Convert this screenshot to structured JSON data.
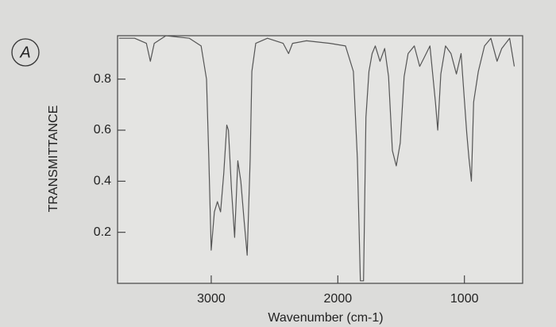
{
  "chart_data": {
    "type": "line",
    "annotation": "A",
    "xlabel": "Wavenumber (cm-1)",
    "ylabel": "TRANSMITTANCE",
    "xlim": [
      3740,
      540
    ],
    "ylim": [
      0,
      0.97
    ],
    "xticks": [
      3000,
      2000,
      1000
    ],
    "yticks": [
      0.2,
      0.4,
      0.6,
      0.8
    ],
    "series": [
      {
        "color": "#555555",
        "x": [
          3728,
          3605,
          3512,
          3481,
          3450,
          3358,
          3173,
          3080,
          3037,
          3019,
          3000,
          2975,
          2951,
          2926,
          2901,
          2877,
          2864,
          2840,
          2815,
          2790,
          2766,
          2741,
          2716,
          2692,
          2679,
          2648,
          2556,
          2432,
          2389,
          2358,
          2247,
          2062,
          1939,
          1877,
          1846,
          1822,
          1797,
          1778,
          1754,
          1729,
          1704,
          1667,
          1630,
          1599,
          1569,
          1538,
          1507,
          1476,
          1445,
          1396,
          1353,
          1322,
          1272,
          1229,
          1211,
          1186,
          1149,
          1106,
          1063,
          1026,
          982,
          964,
          945,
          927,
          890,
          841,
          791,
          742,
          705,
          643,
          606
        ],
        "values": [
          0.96,
          0.96,
          0.94,
          0.87,
          0.94,
          0.97,
          0.96,
          0.93,
          0.8,
          0.49,
          0.13,
          0.28,
          0.32,
          0.28,
          0.43,
          0.62,
          0.6,
          0.37,
          0.18,
          0.48,
          0.4,
          0.25,
          0.11,
          0.49,
          0.83,
          0.94,
          0.96,
          0.94,
          0.9,
          0.94,
          0.95,
          0.94,
          0.93,
          0.83,
          0.49,
          0.01,
          0.01,
          0.65,
          0.83,
          0.9,
          0.93,
          0.87,
          0.92,
          0.81,
          0.52,
          0.46,
          0.55,
          0.81,
          0.9,
          0.93,
          0.85,
          0.88,
          0.93,
          0.71,
          0.6,
          0.82,
          0.93,
          0.9,
          0.82,
          0.9,
          0.59,
          0.49,
          0.4,
          0.71,
          0.83,
          0.93,
          0.96,
          0.87,
          0.92,
          0.96,
          0.85
        ]
      }
    ]
  }
}
